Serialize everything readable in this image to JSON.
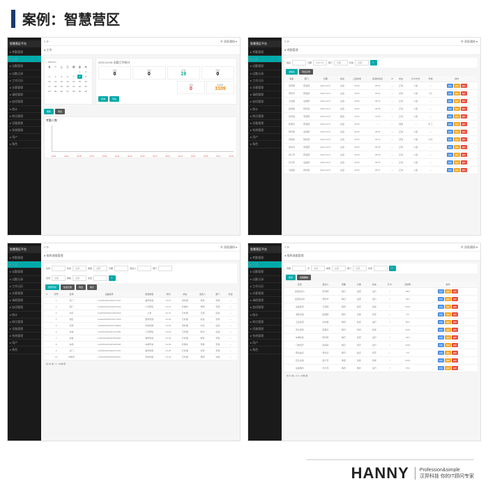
{
  "header": {
    "title": "案例：智慧营区"
  },
  "sidebar_logo": "智慧营区平台",
  "sidebar_items": [
    "考勤管理",
    "人员",
    "出勤管理",
    "出勤记录",
    "工作日历",
    "访客管理",
    "请假管理",
    "加班管理",
    "统计",
    "岗位管理",
    "设备管理",
    "系统管理",
    "用户",
    "角色"
  ],
  "topbar": {
    "left": "≡  ⟳",
    "right": "▣  消息通知 ▾"
  },
  "p1": {
    "crumb": "● 工作",
    "date_nav": "‹  2022-04  ›",
    "cal_headers": [
      "日",
      "一",
      "二",
      "三",
      "四",
      "五",
      "六"
    ],
    "cal_days": [
      "",
      "",
      "",
      "",
      "",
      "1",
      "2",
      "3",
      "4",
      "5",
      "6",
      "7",
      "8",
      "9",
      "10",
      "11",
      "12",
      "13",
      "14",
      "15",
      "16",
      "17",
      "18",
      "19",
      "20",
      "21",
      "22",
      "23",
      "24",
      "25",
      "26",
      "27",
      "28",
      "29",
      "30",
      ""
    ],
    "today": "8",
    "stats_title": "2022-04-08 出勤工作统计",
    "stats": [
      {
        "label": "应到",
        "val": "0",
        "cls": ""
      },
      {
        "label": "实到",
        "val": "0",
        "cls": ""
      },
      {
        "label": "正常",
        "val": "19",
        "cls": "sv-green"
      },
      {
        "label": "异常",
        "val": "0",
        "cls": ""
      }
    ],
    "stats2": [
      {
        "label": "迟到",
        "val": "0",
        "cls": "sv-red"
      },
      {
        "label": "早退/旷",
        "val": "3109",
        "cls": "sv-orange"
      }
    ],
    "btns": [
      "查询",
      "导出"
    ],
    "btns2": [
      "刷新",
      "导出"
    ],
    "chart_title": "考勤人数",
    "chart_ticks": [
      "04-01",
      "04-03",
      "04-05",
      "04-07",
      "04-09",
      "04-11",
      "04-13",
      "04-15",
      "04-17",
      "04-19",
      "04-21",
      "04-23",
      "04-25",
      "04-27",
      "04-29"
    ]
  },
  "p2": {
    "crumb": "● 考勤管理",
    "filters": [
      {
        "l": "姓名",
        "v": ""
      },
      {
        "l": "日期",
        "v": "2022-04"
      },
      {
        "l": "部门",
        "v": "全部"
      },
      {
        "l": "状态",
        "v": "全部"
      }
    ],
    "tabs": [
      "考勤表",
      "导出记录"
    ],
    "cols": [
      "姓名",
      "部门",
      "日期",
      "班次",
      "上班时间",
      "签到时间点",
      "IP",
      "状态",
      "打卡方式",
      "异常",
      "操作"
    ],
    "rows": [
      [
        "张伟明",
        "研发部",
        "2022-04-07",
        "白班",
        "09:00",
        "08:55",
        "—",
        "正常",
        "人脸",
        "—"
      ],
      [
        "李晓华",
        "研发部",
        "2022-04-07",
        "白班",
        "09:00",
        "09:02",
        "—",
        "迟到",
        "人脸",
        "2分"
      ],
      [
        "王建国",
        "后勤部",
        "2022-04-07",
        "白班",
        "09:00",
        "08:50",
        "—",
        "正常",
        "人脸",
        "—"
      ],
      [
        "赵丽娟",
        "财务部",
        "2022-04-07",
        "白班",
        "09:00",
        "08:58",
        "—",
        "正常",
        "人脸",
        "—"
      ],
      [
        "刘志强",
        "安保部",
        "2022-04-07",
        "夜班",
        "20:00",
        "19:55",
        "—",
        "正常",
        "人脸",
        "—"
      ],
      [
        "陈美玲",
        "研发部",
        "2022-04-07",
        "白班",
        "09:00",
        "—",
        "—",
        "缺勤",
        "—",
        "旷工"
      ],
      [
        "杨光辉",
        "后勤部",
        "2022-04-07",
        "白班",
        "09:00",
        "08:52",
        "—",
        "正常",
        "人脸",
        "—"
      ],
      [
        "周婷婷",
        "财务部",
        "2022-04-07",
        "白班",
        "09:00",
        "09:15",
        "—",
        "迟到",
        "人脸",
        "15分"
      ],
      [
        "吴海涛",
        "安保部",
        "2022-04-07",
        "白班",
        "09:00",
        "08:48",
        "—",
        "正常",
        "人脸",
        "—"
      ],
      [
        "郑小芳",
        "研发部",
        "2022-04-07",
        "白班",
        "09:00",
        "08:59",
        "—",
        "正常",
        "人脸",
        "—"
      ],
      [
        "孙大伟",
        "后勤部",
        "2022-04-07",
        "白班",
        "09:00",
        "08:55",
        "—",
        "正常",
        "人脸",
        "—"
      ],
      [
        "马丽丽",
        "财务部",
        "2022-04-07",
        "白班",
        "09:00",
        "08:57",
        "—",
        "正常",
        "人脸",
        "—"
      ]
    ],
    "ops": [
      "查看",
      "编辑",
      "删除"
    ]
  },
  "p3": {
    "crumb": "● 指挥调度管理",
    "filters": [
      {
        "l": "名称",
        "v": ""
      },
      {
        "l": "状态",
        "v": "全部"
      },
      {
        "l": "类型",
        "v": "全部"
      },
      {
        "l": "日期",
        "v": ""
      },
      {
        "l": "责任人",
        "v": ""
      },
      {
        "l": "部门",
        "v": ""
      }
    ],
    "filters2": [
      {
        "l": "来源",
        "v": "全部"
      },
      {
        "l": "等级",
        "v": "全部"
      },
      {
        "l": "处置",
        "v": ""
      }
    ],
    "tabs": [
      "告警列表",
      "处置记录",
      "导出",
      "统计"
    ],
    "cols": [
      "#",
      "序号",
      "名称",
      "设备编号",
      "告警类型",
      "时间",
      "状态",
      "责任人",
      "部门",
      "处置"
    ],
    "rows": [
      [
        "",
        "1",
        "东门",
        "CAM20220401EAST001",
        "越界告警",
        "04-07",
        "待处理",
        "张伟",
        "安保",
        "—"
      ],
      [
        "",
        "2",
        "西门",
        "CAM20220401WEST002",
        "人员聚集",
        "04-07",
        "处理中",
        "李明",
        "安保",
        "—"
      ],
      [
        "",
        "3",
        "北区",
        "CAM20220402NORTH03",
        "火警",
        "04-07",
        "已处理",
        "王强",
        "后勤",
        "—"
      ],
      [
        "",
        "4",
        "南区",
        "CAM20220402SOUTH04",
        "越界告警",
        "04-06",
        "已处理",
        "赵亮",
        "安保",
        "—"
      ],
      [
        "",
        "5",
        "仓库",
        "CAM20220403STORE05",
        "异常停留",
        "04-06",
        "待处理",
        "刘涛",
        "后勤",
        "—"
      ],
      [
        "",
        "6",
        "食堂",
        "CAM20220403CANT006",
        "人员聚集",
        "04-06",
        "已处理",
        "陈华",
        "后勤",
        "—"
      ],
      [
        "",
        "7",
        "宿舍",
        "CAM20220404DORM007",
        "越界告警",
        "04-05",
        "已处理",
        "杨军",
        "安保",
        "—"
      ],
      [
        "",
        "8",
        "车库",
        "CAM20220404PARK008",
        "车辆异常",
        "04-05",
        "处理中",
        "周斌",
        "安保",
        "—"
      ],
      [
        "",
        "9",
        "东门",
        "CAM20220401EAST001",
        "越界告警",
        "04-05",
        "已处理",
        "张伟",
        "安保",
        "—"
      ],
      [
        "",
        "10",
        "训练场",
        "CAM20220405TRAIN09",
        "异常停留",
        "04-04",
        "已处理",
        "吴刚",
        "训练",
        "—"
      ]
    ],
    "pagination": "共 10 条  ‹ 1 › 10条/页"
  },
  "p4": {
    "crumb": "● 指挥调度管理",
    "filters": [
      {
        "l": "周期",
        "v": ""
      },
      {
        "l": "月",
        "v": "全部"
      },
      {
        "l": "类型",
        "v": "全部"
      },
      {
        "l": "部门",
        "v": "全部"
      },
      {
        "l": "状态",
        "v": ""
      }
    ],
    "tabs": [
      "新增",
      "批量删除"
    ],
    "cols": [
      "任务",
      "责任人",
      "周期",
      "分类",
      "状态",
      "打卡",
      "完成率",
      "操作"
    ],
    "rows": [
      [
        "巡逻任务A",
        "张伟明",
        "每日",
        "巡逻",
        "进行",
        "√",
        "98%"
      ],
      [
        "巡逻任务B",
        "李晓华",
        "每日",
        "巡逻",
        "进行",
        "√",
        "95%"
      ],
      [
        "设备检查",
        "王建国",
        "每周",
        "检查",
        "完成",
        "√",
        "100%"
      ],
      [
        "消防演练",
        "赵丽娟",
        "每月",
        "演练",
        "待定",
        "—",
        "0%"
      ],
      [
        "卫生检查",
        "刘志强",
        "每周",
        "检查",
        "进行",
        "√",
        "80%"
      ],
      [
        "安全培训",
        "陈美玲",
        "每月",
        "培训",
        "完成",
        "√",
        "100%"
      ],
      [
        "车辆巡检",
        "杨光辉",
        "每日",
        "检查",
        "进行",
        "√",
        "92%"
      ],
      [
        "门岗值守",
        "周婷婷",
        "每日",
        "值守",
        "进行",
        "√",
        "100%"
      ],
      [
        "库房盘点",
        "吴海涛",
        "每月",
        "盘点",
        "待定",
        "—",
        "0%"
      ],
      [
        "应急演练",
        "郑小芳",
        "季度",
        "演练",
        "完成",
        "√",
        "100%"
      ],
      [
        "设备维护",
        "孙大伟",
        "每周",
        "维护",
        "进行",
        "√",
        "75%"
      ]
    ],
    "ops": [
      "查看",
      "编辑",
      "删除"
    ],
    "pagination": "共 11 条  ‹ 1 2 › 10条/页"
  },
  "footer": {
    "logo": "HANNY",
    "line1": "Profession&simple",
    "line2": "汉羿科技 你的IT顾问专家"
  },
  "colors": {
    "accent": "#0aa",
    "dark": "#1a1a1a",
    "blue": "#4a90e2",
    "orange": "#f5a623",
    "red": "#e74c3c"
  }
}
